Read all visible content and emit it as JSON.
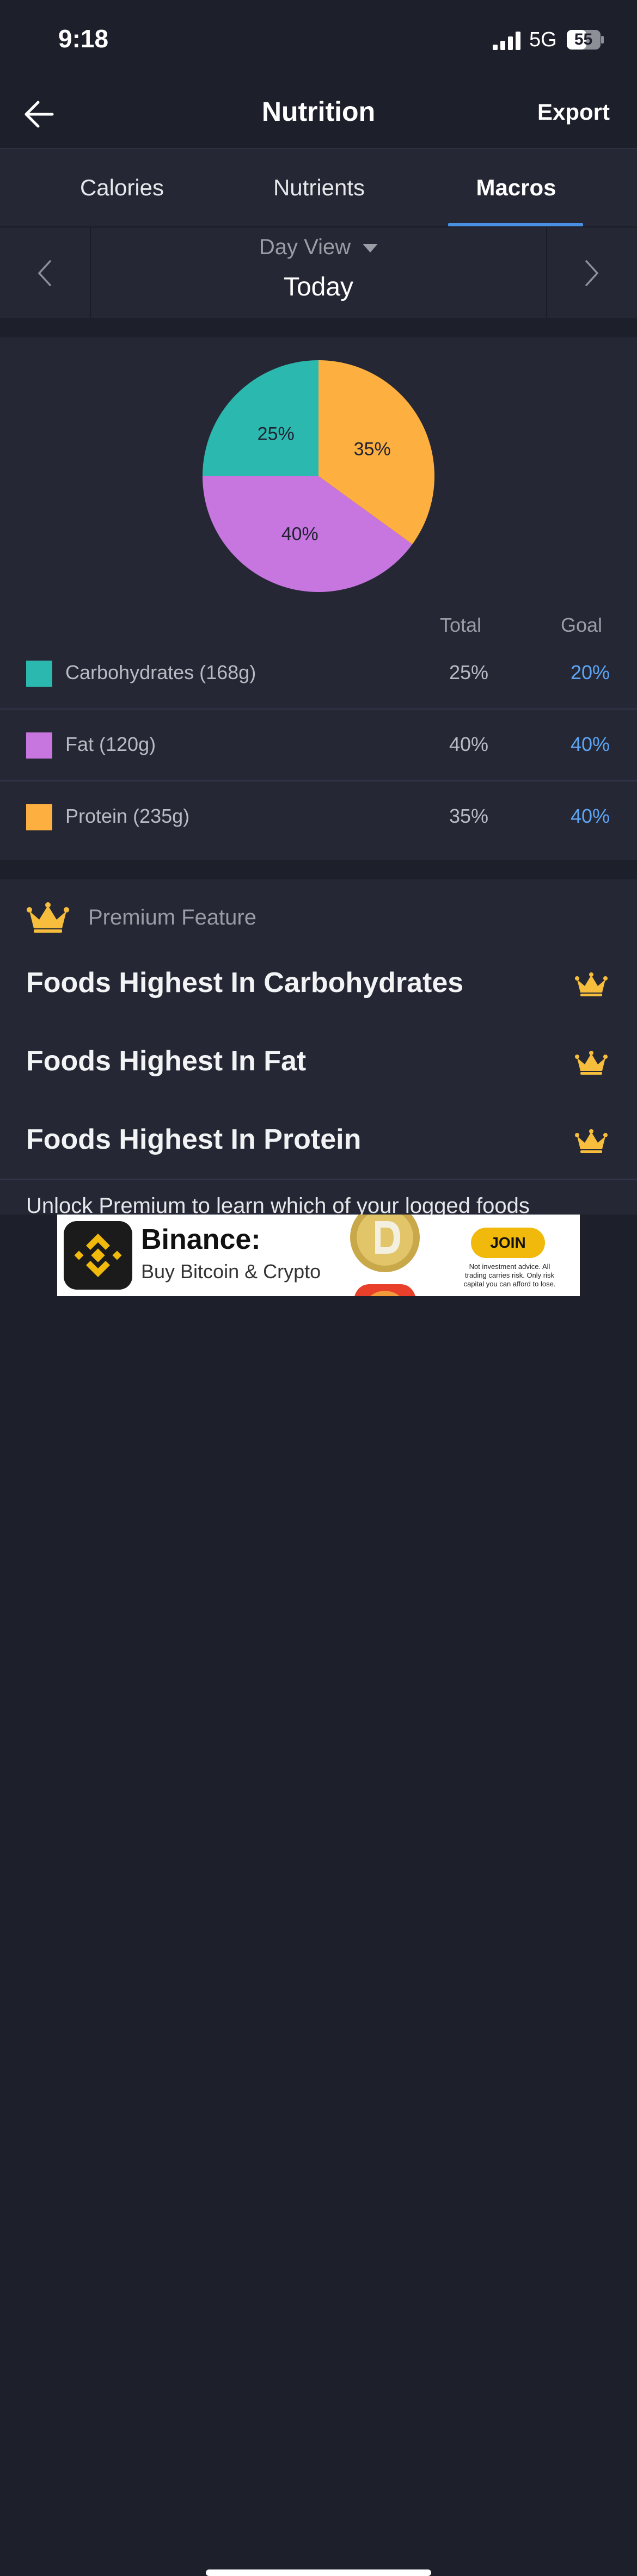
{
  "status_bar": {
    "time": "9:18",
    "network": "5G",
    "battery": "55"
  },
  "header": {
    "title": "Nutrition",
    "export_label": "Export",
    "back_icon": "arrow-left-icon"
  },
  "tabs": [
    {
      "label": "Calories",
      "active": false
    },
    {
      "label": "Nutrients",
      "active": false
    },
    {
      "label": "Macros",
      "active": true
    }
  ],
  "date_nav": {
    "view_label": "Day View",
    "period_label": "Today"
  },
  "colors": {
    "carbs": "#2bb8ae",
    "fat": "#c776e0",
    "protein": "#fdb03f",
    "goal": "#5ea5f4",
    "accent": "#4a90e2",
    "crown": "#f7bd3c"
  },
  "chart_data": {
    "type": "pie",
    "slices": [
      {
        "label": "Protein",
        "value": 35,
        "display": "35%",
        "color": "#fdb03f"
      },
      {
        "label": "Fat",
        "value": 40,
        "display": "40%",
        "color": "#c776e0"
      },
      {
        "label": "Carbohydrates",
        "value": 25,
        "display": "25%",
        "color": "#2bb8ae"
      }
    ]
  },
  "macros_table": {
    "col_total": "Total",
    "col_goal": "Goal",
    "rows": [
      {
        "label": "Carbohydrates (168g)",
        "total": "25%",
        "goal": "20%",
        "color": "#2bb8ae"
      },
      {
        "label": "Fat (120g)",
        "total": "40%",
        "goal": "40%",
        "color": "#c776e0"
      },
      {
        "label": "Protein (235g)",
        "total": "35%",
        "goal": "40%",
        "color": "#fdb03f"
      }
    ]
  },
  "premium": {
    "label": "Premium Feature",
    "items": [
      {
        "label": "Foods Highest In Carbohydrates"
      },
      {
        "label": "Foods Highest In Fat"
      },
      {
        "label": "Foods Highest In Protein"
      }
    ],
    "unlock_text": "Unlock Premium to learn which of your logged foods"
  },
  "ad": {
    "title": "Binance:",
    "subtitle": "Buy Bitcoin & Crypto",
    "cta": "JOIN",
    "disclaimer": "Not investment advice. All trading carries risk. Only risk capital you can afford to lose."
  }
}
